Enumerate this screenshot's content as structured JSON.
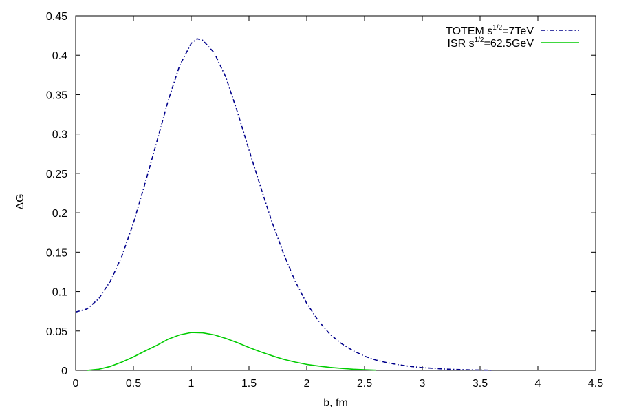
{
  "chart_data": {
    "type": "line",
    "title": "",
    "xlabel": "b, fm",
    "ylabel": "ΔG",
    "xlim": [
      0,
      4.5
    ],
    "ylim": [
      0,
      0.45
    ],
    "grid": false,
    "legend_position": "top-right",
    "xticks": [
      "0",
      "0.5",
      "1",
      "1.5",
      "2",
      "2.5",
      "3",
      "3.5",
      "4",
      "4.5"
    ],
    "yticks": [
      "0",
      "0.05",
      "0.1",
      "0.15",
      "0.2",
      "0.25",
      "0.3",
      "0.35",
      "0.4",
      "0.45"
    ],
    "series": [
      {
        "name": "TOTEM s^1/2=7TeV",
        "legend_main": "TOTEM s",
        "legend_sup": "1/2",
        "legend_rest": "=7TeV",
        "color": "#00008b",
        "dash": "dash-dot",
        "points": [
          [
            0,
            0.074
          ],
          [
            0.1,
            0.078
          ],
          [
            0.2,
            0.091
          ],
          [
            0.3,
            0.113
          ],
          [
            0.4,
            0.145
          ],
          [
            0.5,
            0.187
          ],
          [
            0.6,
            0.237
          ],
          [
            0.7,
            0.289
          ],
          [
            0.8,
            0.342
          ],
          [
            0.9,
            0.387
          ],
          [
            1.0,
            0.415
          ],
          [
            1.05,
            0.421
          ],
          [
            1.1,
            0.419
          ],
          [
            1.2,
            0.403
          ],
          [
            1.3,
            0.372
          ],
          [
            1.4,
            0.328
          ],
          [
            1.5,
            0.28
          ],
          [
            1.6,
            0.233
          ],
          [
            1.7,
            0.188
          ],
          [
            1.8,
            0.148
          ],
          [
            1.9,
            0.113
          ],
          [
            2.0,
            0.085
          ],
          [
            2.1,
            0.063
          ],
          [
            2.2,
            0.046
          ],
          [
            2.3,
            0.034
          ],
          [
            2.4,
            0.025
          ],
          [
            2.5,
            0.018
          ],
          [
            2.6,
            0.013
          ],
          [
            2.7,
            0.0095
          ],
          [
            2.8,
            0.007
          ],
          [
            2.9,
            0.005
          ],
          [
            3.0,
            0.0035
          ],
          [
            3.1,
            0.0025
          ],
          [
            3.2,
            0.0017
          ],
          [
            3.3,
            0.0011
          ],
          [
            3.4,
            0.0007
          ],
          [
            3.5,
            0.0004
          ],
          [
            3.6,
            0.0002
          ]
        ]
      },
      {
        "name": "ISR s^1/2=62.5GeV",
        "legend_main": "ISR s",
        "legend_sup": "1/2",
        "legend_rest": "=62.5GeV",
        "color": "#00cc00",
        "dash": "solid",
        "points": [
          [
            0.1,
            0.0
          ],
          [
            0.2,
            0.0015
          ],
          [
            0.3,
            0.005
          ],
          [
            0.4,
            0.0105
          ],
          [
            0.5,
            0.017
          ],
          [
            0.6,
            0.0245
          ],
          [
            0.7,
            0.0315
          ],
          [
            0.8,
            0.0395
          ],
          [
            0.9,
            0.045
          ],
          [
            1.0,
            0.048
          ],
          [
            1.1,
            0.0475
          ],
          [
            1.2,
            0.045
          ],
          [
            1.3,
            0.0405
          ],
          [
            1.4,
            0.035
          ],
          [
            1.5,
            0.029
          ],
          [
            1.6,
            0.0235
          ],
          [
            1.7,
            0.0185
          ],
          [
            1.8,
            0.014
          ],
          [
            1.9,
            0.0105
          ],
          [
            2.0,
            0.0075
          ],
          [
            2.1,
            0.0055
          ],
          [
            2.2,
            0.0038
          ],
          [
            2.3,
            0.0025
          ],
          [
            2.4,
            0.0015
          ],
          [
            2.5,
            0.0008
          ],
          [
            2.6,
            0.0003
          ]
        ]
      }
    ]
  }
}
